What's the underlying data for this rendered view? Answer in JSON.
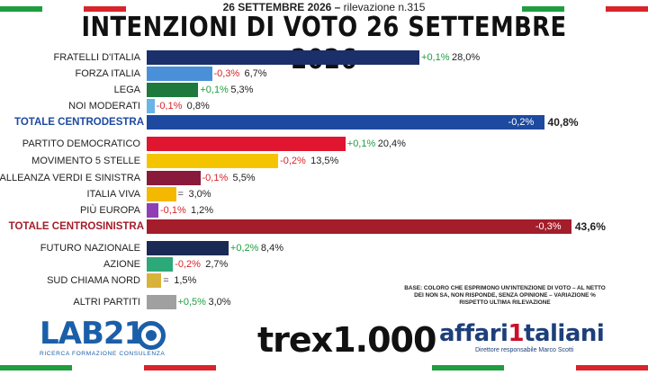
{
  "header": {
    "subtitle_bold": "26 SETTEMBRE 2026 –",
    "subtitle_rest": "rilevazione n.315",
    "title": "INTENZIONI DI VOTO 26 SETTEMBRE 2026"
  },
  "colors": {
    "flag_green": "#1e9e3e",
    "flag_white": "#ffffff",
    "flag_red": "#d8242a",
    "delta_positive": "#1e9e3e",
    "delta_negative": "#d8242a",
    "delta_equal": "#444444"
  },
  "chart_data": {
    "type": "bar",
    "orientation": "horizontal",
    "xlim": [
      0,
      45
    ],
    "rows": [
      {
        "label": "FRATELLI D'ITALIA",
        "value": 28.0,
        "value_text": "28,0%",
        "delta_text": "+0,1%",
        "sign": "positive",
        "color": "#1b2f6b",
        "total": false
      },
      {
        "label": "FORZA ITALIA",
        "value": 6.7,
        "value_text": "6,7%",
        "delta_text": "-0,3%",
        "sign": "negative",
        "color": "#4a90d9",
        "total": false
      },
      {
        "label": "LEGA",
        "value": 5.3,
        "value_text": "5,3%",
        "delta_text": "+0,1%",
        "sign": "positive",
        "color": "#1e7a3c",
        "total": false
      },
      {
        "label": "NOI MODERATI",
        "value": 0.8,
        "value_text": "0,8%",
        "delta_text": "-0,1%",
        "sign": "negative",
        "color": "#6ab4e8",
        "total": false
      },
      {
        "label": "TOTALE CENTRODESTRA",
        "value": 40.8,
        "value_text": "40,8%",
        "delta_text": "-0,2%",
        "sign": "negative",
        "color": "#1d4aa0",
        "label_color": "#1d4aa0",
        "total": true
      },
      {
        "label": "PARTITO DEMOCRATICO",
        "value": 20.4,
        "value_text": "20,4%",
        "delta_text": "+0,1%",
        "sign": "positive",
        "color": "#e0152f",
        "total": false
      },
      {
        "label": "MOVIMENTO 5 STELLE",
        "value": 13.5,
        "value_text": "13,5%",
        "delta_text": "-0,2%",
        "sign": "negative",
        "color": "#f5c400",
        "total": false
      },
      {
        "label": "ALLEANZA VERDI E SINISTRA",
        "value": 5.5,
        "value_text": "5,5%",
        "delta_text": "-0,1%",
        "sign": "negative",
        "color": "#8a1a3c",
        "total": false
      },
      {
        "label": "ITALIA VIVA",
        "value": 3.0,
        "value_text": "3,0%",
        "delta_text": "=",
        "sign": "equal",
        "color": "#f5b800",
        "total": false
      },
      {
        "label": "PIÙ EUROPA",
        "value": 1.2,
        "value_text": "1,2%",
        "delta_text": "-0,1%",
        "sign": "negative",
        "color": "#8e3fb5",
        "total": false
      },
      {
        "label": "TOTALE CENTROSINISTRA",
        "value": 43.6,
        "value_text": "43,6%",
        "delta_text": "-0,3%",
        "sign": "negative",
        "color": "#a41d2a",
        "label_color": "#a41d2a",
        "total": true
      },
      {
        "label": "FUTURO NAZIONALE",
        "value": 8.4,
        "value_text": "8,4%",
        "delta_text": "+0,2%",
        "sign": "positive",
        "color": "#1b2a55",
        "total": false
      },
      {
        "label": "AZIONE",
        "value": 2.7,
        "value_text": "2,7%",
        "delta_text": "-0,2%",
        "sign": "negative",
        "color": "#2da878",
        "total": false
      },
      {
        "label": "SUD CHIAMA NORD",
        "value": 1.5,
        "value_text": "1,5%",
        "delta_text": "=",
        "sign": "equal",
        "color": "#d9b23a",
        "total": false
      },
      {
        "label": "ALTRI PARTITI",
        "value": 3.0,
        "value_text": "3,0%",
        "delta_text": "+0,5%",
        "sign": "positive",
        "color": "#a0a0a0",
        "total": false
      }
    ]
  },
  "note": {
    "line1": "BASE: COLORO CHE ESPRIMONO UN'INTENZIONE DI VOTO – AL NETTO",
    "line2": "DEI NON SA, NON RISPONDE, SENZA OPINIONE – VARIAZIONE %",
    "line3": "RISPETTO ULTIMA RILEVAZIONE"
  },
  "logos": {
    "lab_text": "LAB21",
    "lab_sub": "RICERCA FORMAZIONE CONSULENZA",
    "trex_text": "trex1.000",
    "affari_a": "affari",
    "affari_1": "1",
    "affari_b": "taliani",
    "affari_sub": "Direttore responsabile Marco Scotti"
  }
}
